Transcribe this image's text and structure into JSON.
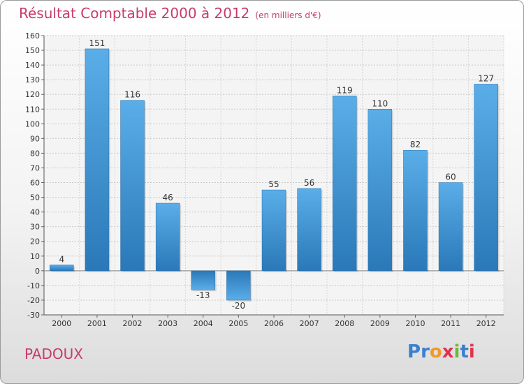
{
  "title": "Résultat Comptable 2000 à 2012",
  "subtitle": "(en milliers d'€)",
  "commune": "PADOUX",
  "logo": {
    "text": "Proxiti",
    "letters": [
      "P",
      "r",
      "o",
      "x",
      "i",
      "t",
      "i"
    ],
    "colors": [
      "#3b7fd0",
      "#3b7fd0",
      "#f09a2a",
      "#e0334f",
      "#6cb83a",
      "#3b7fd0",
      "#e0334f"
    ]
  },
  "colors": {
    "bar_top": "#5aaee8",
    "bar_bottom": "#2a78b8",
    "title": "#c83a6d"
  },
  "chart_data": {
    "type": "bar",
    "title": "Résultat Comptable 2000 à 2012",
    "ylabel": "en milliers d'€",
    "xlabel": "",
    "categories": [
      "2000",
      "2001",
      "2002",
      "2003",
      "2004",
      "2005",
      "2006",
      "2007",
      "2008",
      "2009",
      "2010",
      "2011",
      "2012"
    ],
    "values": [
      4,
      151,
      116,
      46,
      -13,
      -20,
      55,
      56,
      119,
      110,
      82,
      60,
      127
    ],
    "labels": [
      "4",
      "151",
      "116",
      "46",
      "-13",
      "-20",
      "55",
      "56",
      "119",
      "110",
      "82",
      "60",
      "127"
    ],
    "ylim": [
      -30,
      160
    ],
    "yticks": [
      -30,
      -20,
      -10,
      0,
      10,
      20,
      30,
      40,
      50,
      60,
      70,
      80,
      90,
      100,
      110,
      120,
      130,
      140,
      150,
      160
    ],
    "grid": true,
    "legend": "none"
  }
}
